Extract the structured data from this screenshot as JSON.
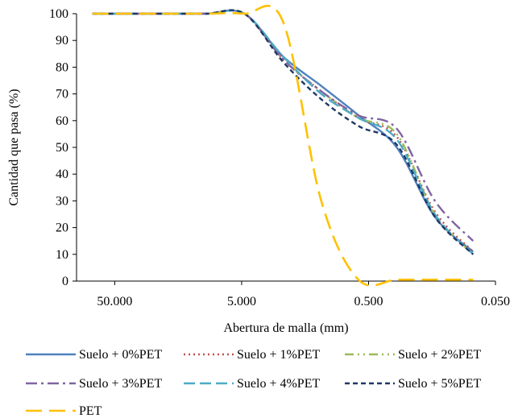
{
  "chart_data": {
    "type": "line",
    "title": "",
    "xlabel": "Abertura de malla (mm)",
    "ylabel": "Cantidad que pasa (%)",
    "x_scale": "log",
    "x_reversed": true,
    "xlim": [
      100,
      0.05
    ],
    "ylim": [
      0,
      100
    ],
    "x_ticks": [
      50,
      5,
      0.5,
      0.05
    ],
    "x_tick_labels": [
      "50.000",
      "5.000",
      "0.500",
      "0.050"
    ],
    "y_ticks": [
      0,
      10,
      20,
      30,
      40,
      50,
      60,
      70,
      80,
      90,
      100
    ],
    "y_tick_labels": [
      "0",
      "10",
      "20",
      "30",
      "40",
      "50",
      "60",
      "70",
      "80",
      "90",
      "100"
    ],
    "grid": false,
    "legend_position": "bottom",
    "series": [
      {
        "name": "Suelo + 0%PET",
        "color": "#4f81bd",
        "dash": "solid",
        "x": [
          75,
          50,
          25,
          19,
          9.5,
          4.75,
          2.36,
          1.18,
          0.6,
          0.3,
          0.15,
          0.075
        ],
        "y": [
          100,
          100,
          100,
          100,
          100,
          100,
          84,
          73,
          62,
          50,
          24,
          11
        ]
      },
      {
        "name": "Suelo + 1%PET",
        "color": "#c0504d",
        "dash": "dot",
        "x": [
          75,
          50,
          25,
          19,
          9.5,
          4.75,
          2.36,
          1.18,
          0.6,
          0.3,
          0.15,
          0.075
        ],
        "y": [
          100,
          100,
          100,
          100,
          100,
          100,
          83,
          71,
          61,
          54,
          26,
          11
        ]
      },
      {
        "name": "Suelo + 2%PET",
        "color": "#9bbb59",
        "dash": "dash-dot-dot",
        "x": [
          75,
          50,
          25,
          19,
          9.5,
          4.75,
          2.36,
          1.18,
          0.6,
          0.3,
          0.15,
          0.075
        ],
        "y": [
          100,
          100,
          100,
          100,
          100,
          100,
          83,
          71,
          61,
          55,
          25,
          10
        ]
      },
      {
        "name": "Suelo + 3%PET",
        "color": "#8064a2",
        "dash": "dash-dot",
        "x": [
          75,
          50,
          25,
          19,
          9.5,
          4.75,
          2.36,
          1.18,
          0.6,
          0.3,
          0.15,
          0.075
        ],
        "y": [
          100,
          100,
          100,
          100,
          100,
          100,
          83,
          71,
          62,
          57,
          30,
          15
        ]
      },
      {
        "name": "Suelo + 4%PET",
        "color": "#4bacc6",
        "dash": "dash",
        "x": [
          75,
          50,
          25,
          19,
          9.5,
          4.75,
          2.36,
          1.18,
          0.6,
          0.3,
          0.15,
          0.075
        ],
        "y": [
          100,
          100,
          100,
          100,
          100,
          100,
          84,
          70,
          61,
          53,
          25,
          10
        ]
      },
      {
        "name": "Suelo + 5%PET",
        "color": "#1f3864",
        "dash": "short-dash",
        "x": [
          75,
          50,
          25,
          19,
          9.5,
          4.75,
          2.36,
          1.18,
          0.6,
          0.3,
          0.15,
          0.075
        ],
        "y": [
          100,
          100,
          100,
          100,
          100,
          100,
          82,
          68,
          58,
          51,
          24,
          10
        ]
      },
      {
        "name": "PET",
        "color": "#ffc000",
        "dash": "long-dash",
        "x": [
          75,
          50,
          25,
          19,
          9.5,
          4.75,
          2.36,
          1.18,
          0.6,
          0.3,
          0.15,
          0.075
        ],
        "y": [
          100,
          100,
          100,
          100,
          100,
          100,
          97,
          30,
          0.5,
          0.5,
          0.5,
          0.5
        ]
      }
    ]
  }
}
